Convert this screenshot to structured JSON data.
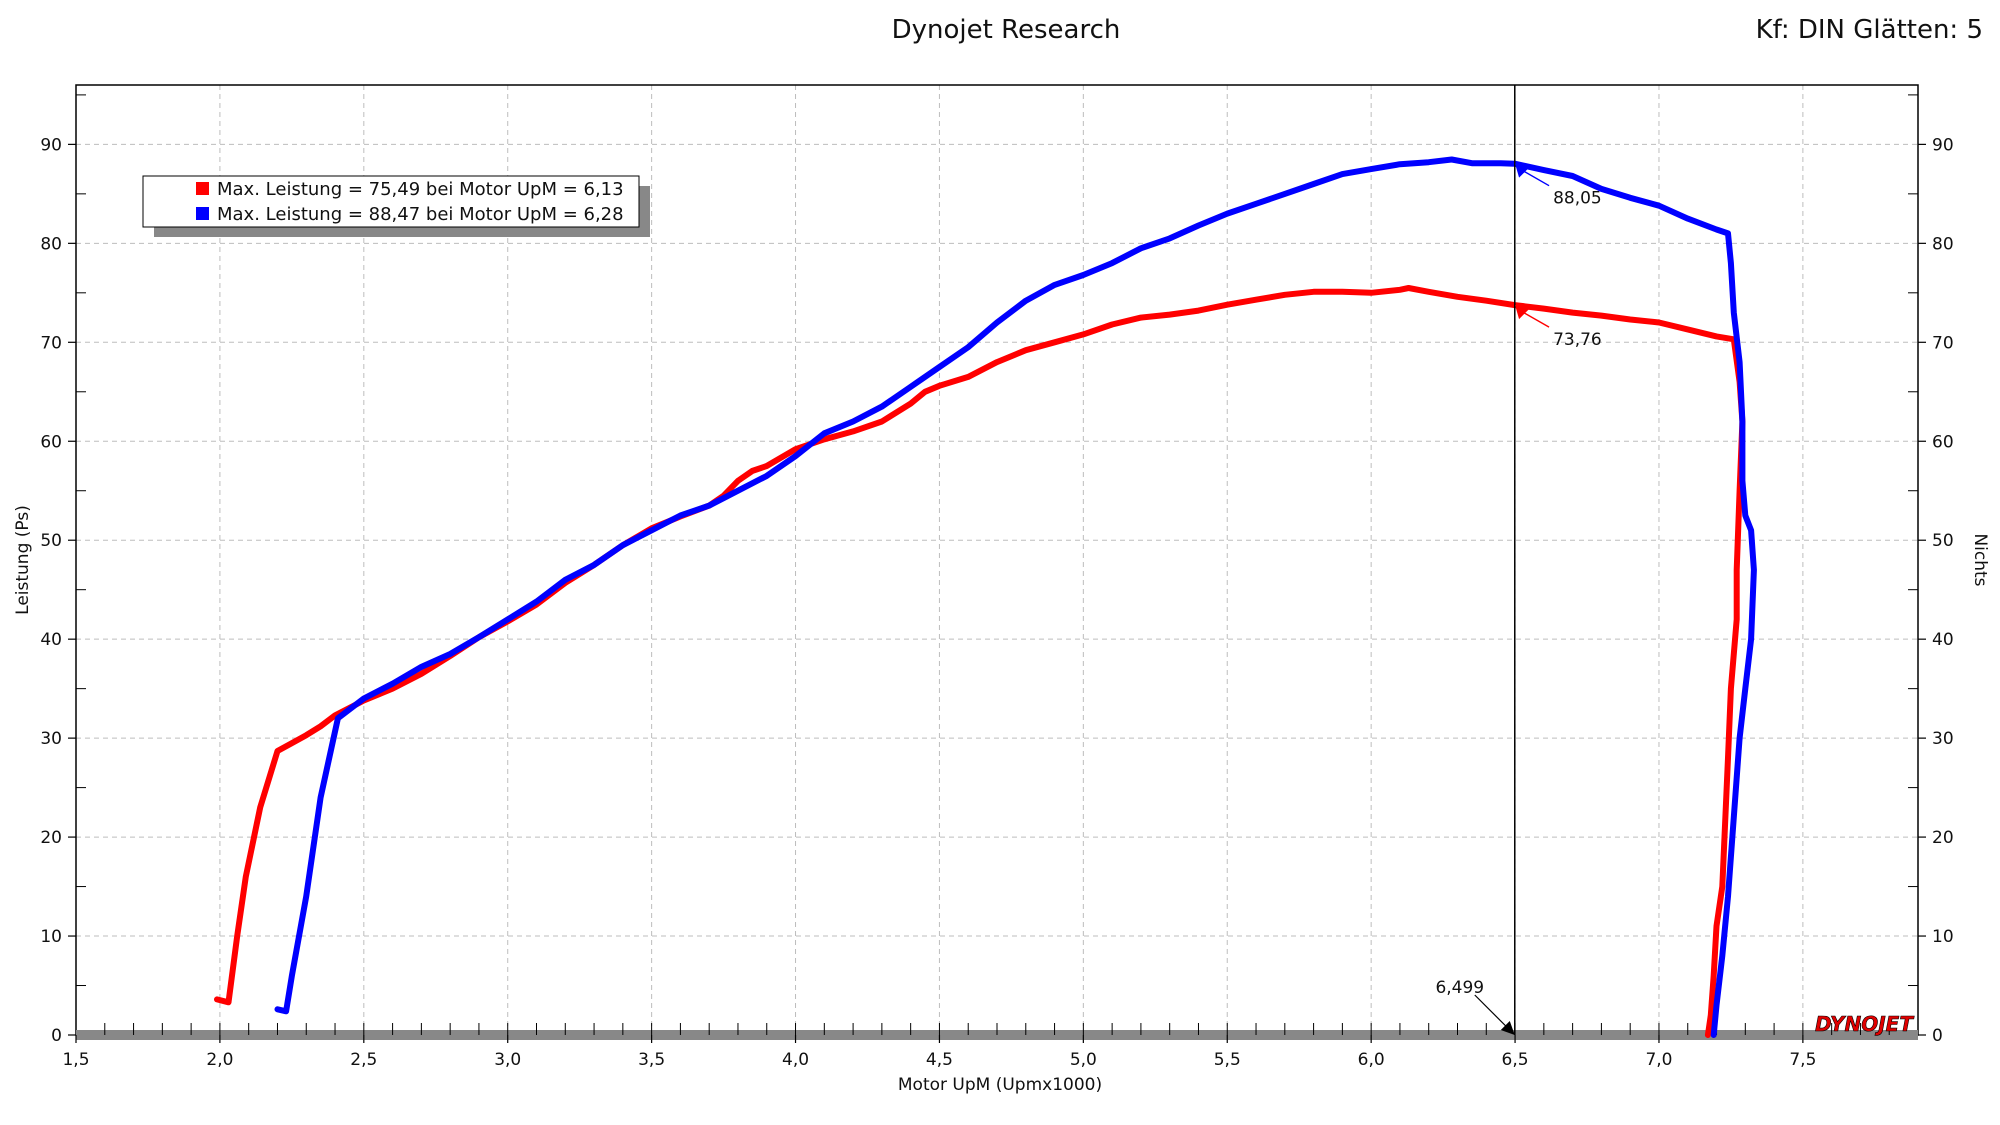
{
  "header": {
    "title": "Dynojet Research",
    "settings": "Kf: DIN Glätten: 5",
    "logo": "DYNOJET"
  },
  "chart_data": {
    "type": "line",
    "xlabel": "Motor UpM (Upmx1000)",
    "ylabel": "Leistung (Ps)",
    "y2label": "Nichts",
    "xlim": [
      1.5,
      7.9
    ],
    "ylim": [
      0,
      96
    ],
    "xticks": [
      "1,5",
      "2,0",
      "2,5",
      "3,0",
      "3,5",
      "4,0",
      "4,5",
      "5,0",
      "5,5",
      "6,0",
      "6,5",
      "7,0",
      "7,5"
    ],
    "xtick_values": [
      1.5,
      2.0,
      2.5,
      3.0,
      3.5,
      4.0,
      4.5,
      5.0,
      5.5,
      6.0,
      6.5,
      7.0,
      7.5
    ],
    "yticks": [
      "0",
      "10",
      "20",
      "30",
      "40",
      "50",
      "60",
      "70",
      "80",
      "90"
    ],
    "ytick_values": [
      0,
      10,
      20,
      30,
      40,
      50,
      60,
      70,
      80,
      90
    ],
    "grid": true,
    "legend": [
      {
        "text": "Max. Leistung = 75,49 bei Motor UpM = 6,13",
        "color": "#ff0000"
      },
      {
        "text": "Max. Leistung = 88,47 bei Motor UpM = 6,28",
        "color": "#0000ff"
      }
    ],
    "cursor": {
      "x": 6.499,
      "label": "6,499"
    },
    "annotations": [
      {
        "text": "88,05",
        "x": 6.5,
        "y": 88.05,
        "color": "#0000ff"
      },
      {
        "text": "73,76",
        "x": 6.5,
        "y": 73.76,
        "color": "#ff0000"
      }
    ],
    "series": [
      {
        "color": "#ff0000",
        "points": [
          [
            1.99,
            3.6
          ],
          [
            2.03,
            3.3
          ],
          [
            2.06,
            10
          ],
          [
            2.09,
            16
          ],
          [
            2.14,
            23
          ],
          [
            2.2,
            28.7
          ],
          [
            2.25,
            29.5
          ],
          [
            2.3,
            30.3
          ],
          [
            2.35,
            31.2
          ],
          [
            2.4,
            32.3
          ],
          [
            2.5,
            33.8
          ],
          [
            2.6,
            35
          ],
          [
            2.7,
            36.5
          ],
          [
            2.8,
            38.3
          ],
          [
            2.9,
            40.2
          ],
          [
            3.0,
            41.8
          ],
          [
            3.1,
            43.5
          ],
          [
            3.2,
            45.7
          ],
          [
            3.3,
            47.5
          ],
          [
            3.4,
            49.5
          ],
          [
            3.5,
            51.2
          ],
          [
            3.6,
            52.4
          ],
          [
            3.7,
            53.5
          ],
          [
            3.75,
            54.5
          ],
          [
            3.8,
            56
          ],
          [
            3.85,
            57
          ],
          [
            3.9,
            57.5
          ],
          [
            4.0,
            59.2
          ],
          [
            4.1,
            60.2
          ],
          [
            4.2,
            61
          ],
          [
            4.3,
            62
          ],
          [
            4.4,
            63.8
          ],
          [
            4.45,
            65
          ],
          [
            4.5,
            65.6
          ],
          [
            4.6,
            66.5
          ],
          [
            4.7,
            68
          ],
          [
            4.8,
            69.2
          ],
          [
            4.9,
            70
          ],
          [
            5.0,
            70.8
          ],
          [
            5.1,
            71.8
          ],
          [
            5.2,
            72.5
          ],
          [
            5.3,
            72.8
          ],
          [
            5.4,
            73.2
          ],
          [
            5.5,
            73.8
          ],
          [
            5.6,
            74.3
          ],
          [
            5.7,
            74.8
          ],
          [
            5.8,
            75.1
          ],
          [
            5.9,
            75.1
          ],
          [
            6.0,
            75.0
          ],
          [
            6.1,
            75.3
          ],
          [
            6.13,
            75.49
          ],
          [
            6.2,
            75.1
          ],
          [
            6.3,
            74.6
          ],
          [
            6.4,
            74.2
          ],
          [
            6.499,
            73.76
          ],
          [
            6.6,
            73.4
          ],
          [
            6.7,
            73
          ],
          [
            6.8,
            72.7
          ],
          [
            6.9,
            72.3
          ],
          [
            7.0,
            72
          ],
          [
            7.1,
            71.3
          ],
          [
            7.2,
            70.6
          ],
          [
            7.26,
            70.3
          ],
          [
            7.28,
            66
          ],
          [
            7.29,
            62
          ],
          [
            7.28,
            55
          ],
          [
            7.27,
            47
          ],
          [
            7.27,
            42
          ],
          [
            7.25,
            35
          ],
          [
            7.24,
            28
          ],
          [
            7.22,
            15
          ],
          [
            7.2,
            11
          ],
          [
            7.19,
            6
          ],
          [
            7.18,
            2
          ],
          [
            7.17,
            0
          ]
        ]
      },
      {
        "color": "#0000ff",
        "points": [
          [
            2.2,
            2.6
          ],
          [
            2.23,
            2.4
          ],
          [
            2.25,
            6
          ],
          [
            2.3,
            14
          ],
          [
            2.35,
            24
          ],
          [
            2.41,
            32
          ],
          [
            2.5,
            34
          ],
          [
            2.6,
            35.5
          ],
          [
            2.7,
            37.2
          ],
          [
            2.8,
            38.5
          ],
          [
            2.9,
            40.2
          ],
          [
            3.0,
            42
          ],
          [
            3.1,
            43.8
          ],
          [
            3.2,
            46
          ],
          [
            3.3,
            47.5
          ],
          [
            3.4,
            49.5
          ],
          [
            3.5,
            51
          ],
          [
            3.6,
            52.5
          ],
          [
            3.7,
            53.5
          ],
          [
            3.8,
            55
          ],
          [
            3.9,
            56.5
          ],
          [
            4.0,
            58.5
          ],
          [
            4.1,
            60.8
          ],
          [
            4.2,
            62
          ],
          [
            4.3,
            63.5
          ],
          [
            4.4,
            65.5
          ],
          [
            4.5,
            67.5
          ],
          [
            4.6,
            69.5
          ],
          [
            4.7,
            72
          ],
          [
            4.8,
            74.2
          ],
          [
            4.9,
            75.8
          ],
          [
            5.0,
            76.8
          ],
          [
            5.1,
            78
          ],
          [
            5.2,
            79.5
          ],
          [
            5.3,
            80.5
          ],
          [
            5.4,
            81.8
          ],
          [
            5.5,
            83
          ],
          [
            5.6,
            84
          ],
          [
            5.7,
            85
          ],
          [
            5.8,
            86
          ],
          [
            5.9,
            87
          ],
          [
            6.0,
            87.5
          ],
          [
            6.1,
            88
          ],
          [
            6.2,
            88.2
          ],
          [
            6.28,
            88.47
          ],
          [
            6.35,
            88.1
          ],
          [
            6.45,
            88.1
          ],
          [
            6.499,
            88.05
          ],
          [
            6.6,
            87.4
          ],
          [
            6.7,
            86.8
          ],
          [
            6.8,
            85.5
          ],
          [
            6.9,
            84.6
          ],
          [
            7.0,
            83.8
          ],
          [
            7.1,
            82.5
          ],
          [
            7.2,
            81.4
          ],
          [
            7.24,
            81
          ],
          [
            7.25,
            78
          ],
          [
            7.26,
            73
          ],
          [
            7.28,
            68
          ],
          [
            7.29,
            62
          ],
          [
            7.29,
            56
          ],
          [
            7.3,
            52.5
          ],
          [
            7.32,
            51
          ],
          [
            7.33,
            47
          ],
          [
            7.32,
            40
          ],
          [
            7.3,
            35
          ],
          [
            7.28,
            30
          ],
          [
            7.26,
            22
          ],
          [
            7.24,
            14
          ],
          [
            7.22,
            8
          ],
          [
            7.2,
            3
          ],
          [
            7.19,
            0
          ]
        ]
      }
    ]
  }
}
